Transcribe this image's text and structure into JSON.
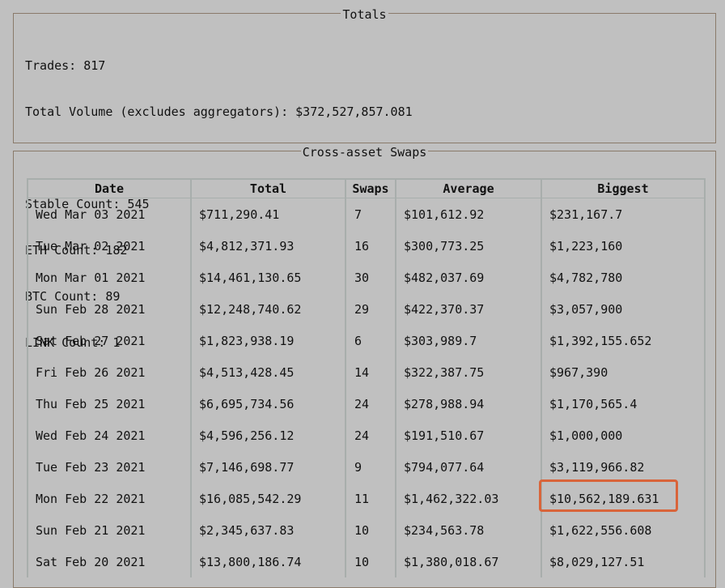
{
  "totals": {
    "legend": "Totals",
    "trades": "Trades: 817",
    "total_volume": "Total Volume (excludes aggregators): $372,527,857.081",
    "stable_count": "Stable Count: 545",
    "eth_count": "ETH Count: 182",
    "btc_count": "BTC Count: 89",
    "link_count": "LINK Count: 1"
  },
  "swaps": {
    "legend": "Cross-asset Swaps",
    "headers": [
      "Date",
      "Total",
      "Swaps",
      "Average",
      "Biggest"
    ],
    "rows": [
      [
        "Wed Mar 03 2021",
        "$711,290.41",
        "7",
        "$101,612.92",
        "$231,167.7"
      ],
      [
        "Tue Mar 02 2021",
        "$4,812,371.93",
        "16",
        "$300,773.25",
        "$1,223,160"
      ],
      [
        "Mon Mar 01 2021",
        "$14,461,130.65",
        "30",
        "$482,037.69",
        "$4,782,780"
      ],
      [
        "Sun Feb 28 2021",
        "$12,248,740.62",
        "29",
        "$422,370.37",
        "$3,057,900"
      ],
      [
        "Sat Feb 27 2021",
        "$1,823,938.19",
        "6",
        "$303,989.7",
        "$1,392,155.652"
      ],
      [
        "Fri Feb 26 2021",
        "$4,513,428.45",
        "14",
        "$322,387.75",
        "$967,390"
      ],
      [
        "Thu Feb 25 2021",
        "$6,695,734.56",
        "24",
        "$278,988.94",
        "$1,170,565.4"
      ],
      [
        "Wed Feb 24 2021",
        "$4,596,256.12",
        "24",
        "$191,510.67",
        "$1,000,000"
      ],
      [
        "Tue Feb 23 2021",
        "$7,146,698.77",
        "9",
        "$794,077.64",
        "$3,119,966.82"
      ],
      [
        "Mon Feb 22 2021",
        "$16,085,542.29",
        "11",
        "$1,462,322.03",
        "$10,562,189.631"
      ],
      [
        "Sun Feb 21 2021",
        "$2,345,637.83",
        "10",
        "$234,563.78",
        "$1,622,556.608"
      ],
      [
        "Sat Feb 20 2021",
        "$13,800,186.74",
        "10",
        "$1,380,018.67",
        "$8,029,127.51"
      ]
    ]
  },
  "colors": {
    "background": "#c0c0c0",
    "fieldset_border": "#8a7a6a",
    "table_border": "#a8aeac",
    "highlight": "#d9643a"
  }
}
